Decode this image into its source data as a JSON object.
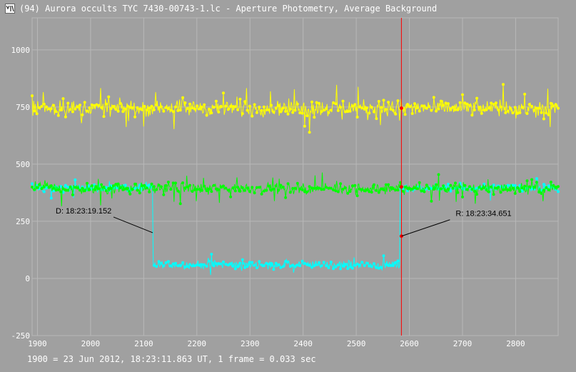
{
  "window": {
    "title": "(94) Aurora occults TYC 7430-00743-1.lc - Aperture Photometry, Average Background",
    "icon": "light-curve-app-icon"
  },
  "footer": {
    "text": "1900 = 23 Jun 2012, 18:23:11.863 UT, 1 frame = 0.033 sec"
  },
  "colors": {
    "background": "#a0a0a0",
    "grid": "#b8b8b8",
    "axis_text": "#ffffff",
    "target_series": "#00ffff",
    "comparison_1": "#ffff00",
    "comparison_2": "#00ff00",
    "marker_line": "#ff0000",
    "annotation_line": "#000000"
  },
  "chart_data": {
    "type": "line",
    "xlim": [
      1890,
      2880
    ],
    "ylim": [
      -250,
      1140
    ],
    "grid": true,
    "x_ticks": [
      1900,
      2000,
      2100,
      2200,
      2300,
      2400,
      2500,
      2600,
      2700,
      2800
    ],
    "y_ticks": [
      -250,
      0,
      250,
      500,
      750,
      1000
    ],
    "series": [
      {
        "role": "comparison-1",
        "color": "#ffff00",
        "x_start": 1890,
        "x_end": 2880,
        "baseline": 745,
        "scatter": 50,
        "highlight": {
          "x": 2585,
          "y": 745
        }
      },
      {
        "role": "comparison-2",
        "color": "#00ff00",
        "x_start": 1890,
        "x_end": 2880,
        "baseline": 395,
        "scatter": 35,
        "highlight": {
          "x": 2585,
          "y": 400
        }
      },
      {
        "role": "target",
        "color": "#00ffff",
        "x_start": 1890,
        "x_end": 2880,
        "baseline": 395,
        "occulted_level": 60,
        "occultation_start": 2117,
        "occultation_end": 2583,
        "scatter": 25,
        "highlight": {
          "x": 2585,
          "y": 185
        }
      }
    ],
    "marker": {
      "x": 2585
    },
    "annotations": [
      {
        "text": "D: 18:23:19.152",
        "target_x": 2117,
        "target_y": 200,
        "anchor": "left"
      },
      {
        "text": "R: 18:23:34.651",
        "target_x": 2585,
        "target_y": 185,
        "anchor": "right"
      }
    ]
  }
}
